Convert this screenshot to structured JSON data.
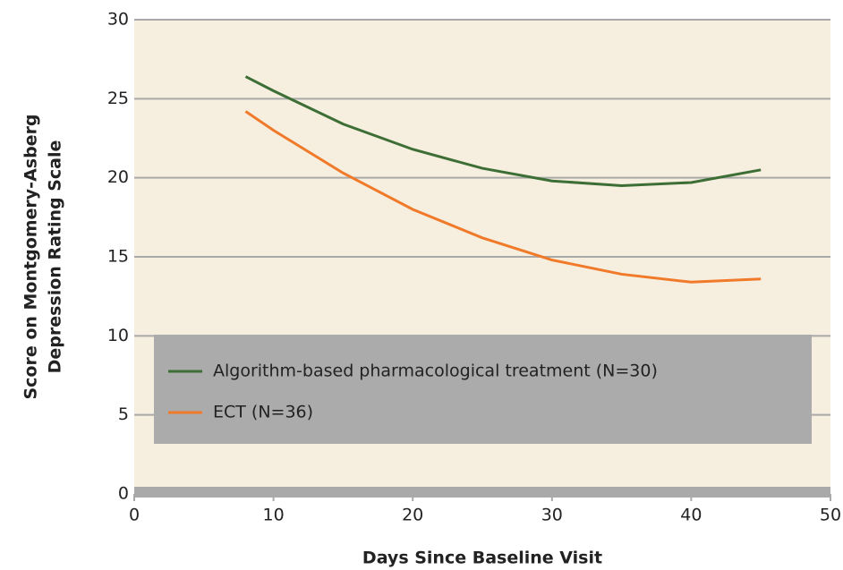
{
  "chart_data": {
    "type": "line",
    "xlabel": "Days Since Baseline Visit",
    "ylabel": [
      "Score on Montgomery-Asberg",
      "Depression Rating Scale"
    ],
    "x": [
      8,
      10,
      15,
      20,
      25,
      30,
      35,
      40,
      45
    ],
    "series": [
      {
        "name": "Algorithm-based pharmacological treatment (N=30)",
        "color": "#3d6e35",
        "values": [
          26.4,
          25.5,
          23.4,
          21.8,
          20.6,
          19.8,
          19.5,
          19.7,
          20.5
        ]
      },
      {
        "name": "ECT (N=36)",
        "color": "#f07a2a",
        "values": [
          24.2,
          23.0,
          20.3,
          18.0,
          16.2,
          14.8,
          13.9,
          13.4,
          13.6
        ]
      }
    ],
    "xlim": [
      0,
      50
    ],
    "xticks": [
      0,
      10,
      20,
      30,
      40,
      50
    ],
    "ylim": [
      0,
      30
    ],
    "yticks": [
      0,
      5,
      10,
      15,
      20,
      25,
      30
    ],
    "grid": true,
    "legend": "bottom"
  }
}
